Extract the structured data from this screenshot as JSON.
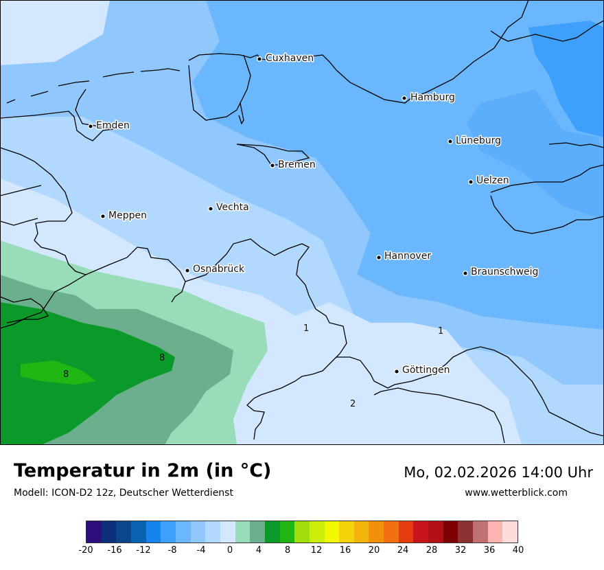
{
  "map": {
    "cities": [
      {
        "name": "Cuxhaven"
      },
      {
        "name": "Hamburg"
      },
      {
        "name": "Emden"
      },
      {
        "name": "Lüneburg"
      },
      {
        "name": "Bremen"
      },
      {
        "name": "Uelzen"
      },
      {
        "name": "Vechta"
      },
      {
        "name": "Meppen"
      },
      {
        "name": "Hannover"
      },
      {
        "name": "Osnabrück"
      },
      {
        "name": "Braunschweig"
      },
      {
        "name": "Göttingen"
      }
    ],
    "contour_labels": [
      "1",
      "1",
      "2",
      "8",
      "8"
    ]
  },
  "header": {
    "title": "Temperatur in 2m (in °C)",
    "subtitle": "Modell: ICON-D2 12z, Deutscher Wetterdienst",
    "datetime": "Mo, 02.02.2026 14:00 Uhr",
    "website": "www.wetterblick.com"
  },
  "legend": {
    "colors": [
      "#2e0e7a",
      "#0b2f78",
      "#0a4689",
      "#0a62b4",
      "#1584ec",
      "#3fa0fb",
      "#6ab7fd",
      "#90c8fd",
      "#b1d8fd",
      "#d3e7fe",
      "#98dcba",
      "#6caf8f",
      "#0b9a2a",
      "#20b714",
      "#a0de0b",
      "#cdee08",
      "#f3f800",
      "#f4d408",
      "#f3b50b",
      "#f29109",
      "#f37012",
      "#e43b0f",
      "#c8141b",
      "#b20f16",
      "#7c0205",
      "#8c3132",
      "#c07173",
      "#feb4b2",
      "#fedcdc"
    ],
    "ticks": [
      "-20",
      "-16",
      "-12",
      "-8",
      "-4",
      "0",
      "4",
      "8",
      "12",
      "16",
      "20",
      "24",
      "28",
      "32",
      "36",
      "40"
    ]
  }
}
